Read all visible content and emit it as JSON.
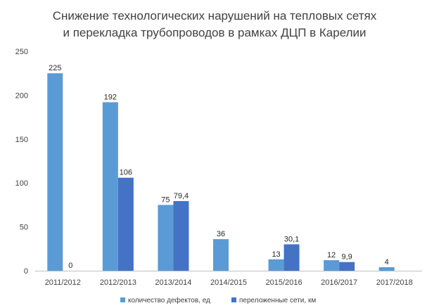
{
  "chart_data": {
    "type": "bar",
    "title_lines": [
      "Снижение технологических нарушений на тепловых сетях",
      "и перекладка трубопроводов в рамках ДЦП в Карелии"
    ],
    "xlabel": "",
    "ylabel": "",
    "ylim": [
      0,
      250
    ],
    "yticks": [
      0,
      50,
      100,
      150,
      200,
      250
    ],
    "categories": [
      "2011/2012",
      "2012/2013",
      "2013/2014",
      "2014/2015",
      "2015/2016",
      "2016/2017",
      "2017/2018"
    ],
    "series": [
      {
        "name": "количество дефектов, ед",
        "color": "#5b9bd5",
        "values": [
          225,
          192,
          75,
          36,
          13,
          12,
          4
        ],
        "labels": [
          "225",
          "192",
          "75",
          "36",
          "13",
          "12",
          "4"
        ]
      },
      {
        "name": "переложенные сети, км",
        "color": "#4472c4",
        "values": [
          0,
          106,
          79.4,
          null,
          30.1,
          9.9,
          null
        ],
        "labels": [
          "0",
          "106",
          "79,4",
          null,
          "30,1",
          "9,9",
          null
        ]
      }
    ],
    "grid": false,
    "legend_position": "bottom"
  }
}
